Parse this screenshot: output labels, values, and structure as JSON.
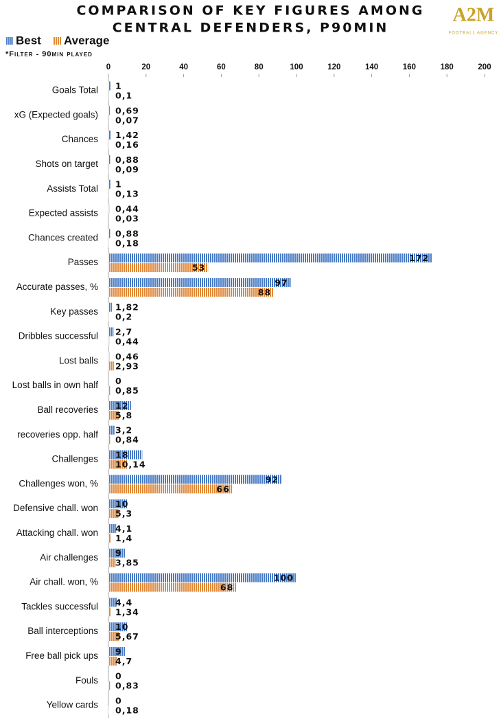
{
  "chart_data": {
    "type": "hbar",
    "title": "COMPARISON OF KEY FIGURES AMONG",
    "title_line2": "CENTRAL DEFENDERS, P90MIN",
    "subtitle": "*Filter - 90min played",
    "categories": [
      "Goals Total",
      "xG (Expected goals)",
      "Chances",
      "Shots on target",
      "Assists Total",
      "Expected assists",
      "Chances created",
      "Passes",
      "Accurate passes, %",
      "Key passes",
      "Dribbles successful",
      "Lost balls",
      "Lost balls in own half",
      "Ball recoveries",
      "recoveries opp. half",
      "Challenges",
      "Challenges won, %",
      "Defensive chall. won",
      "Attacking chall. won",
      "Air challenges",
      "Air chall. won, %",
      "Tackles successful",
      "Ball interceptions",
      "Free ball pick ups",
      "Fouls",
      "Yellow cards"
    ],
    "series": [
      {
        "name": "Best",
        "color": "#4a7cc4",
        "values": [
          1,
          0.69,
          1.42,
          0.88,
          1,
          0.44,
          0.88,
          172,
          97,
          1.82,
          2.7,
          0.46,
          0,
          12,
          3.2,
          18,
          92,
          10,
          4.1,
          9,
          100,
          4.4,
          10,
          9,
          0,
          0
        ],
        "value_labels": [
          "1",
          "0,69",
          "1,42",
          "0,88",
          "1",
          "0,44",
          "0,88",
          "172",
          "97",
          "1,82",
          "2,7",
          "0,46",
          "0",
          "12",
          "3,2",
          "18",
          "92",
          "10",
          "4,1",
          "9",
          "100",
          "4,4",
          "10",
          "9",
          "0",
          "0"
        ]
      },
      {
        "name": "Average",
        "color": "#e08a3c",
        "values": [
          0.1,
          0.07,
          0.16,
          0.09,
          0.13,
          0.03,
          0.18,
          53,
          88,
          0.2,
          0.44,
          2.93,
          0.85,
          5.8,
          0.84,
          10.14,
          66,
          5.3,
          1.4,
          3.85,
          68,
          1.34,
          5.67,
          4.7,
          0.83,
          0.18
        ],
        "value_labels": [
          "0,1",
          "0,07",
          "0,16",
          "0,09",
          "0,13",
          "0,03",
          "0,18",
          "53",
          "88",
          "0,2",
          "0,44",
          "2,93",
          "0,85",
          "5,8",
          "0,84",
          "10,14",
          "66",
          "5,3",
          "1,4",
          "3,85",
          "68",
          "1,34",
          "5,67",
          "4,7",
          "0,83",
          "0,18"
        ]
      }
    ],
    "xlim": [
      0,
      200
    ],
    "xticks": [
      0,
      20,
      40,
      60,
      80,
      100,
      120,
      140,
      160,
      180,
      200
    ]
  },
  "logo": {
    "mark": "A2M",
    "caption": "FOOTBALL AGENCY"
  }
}
